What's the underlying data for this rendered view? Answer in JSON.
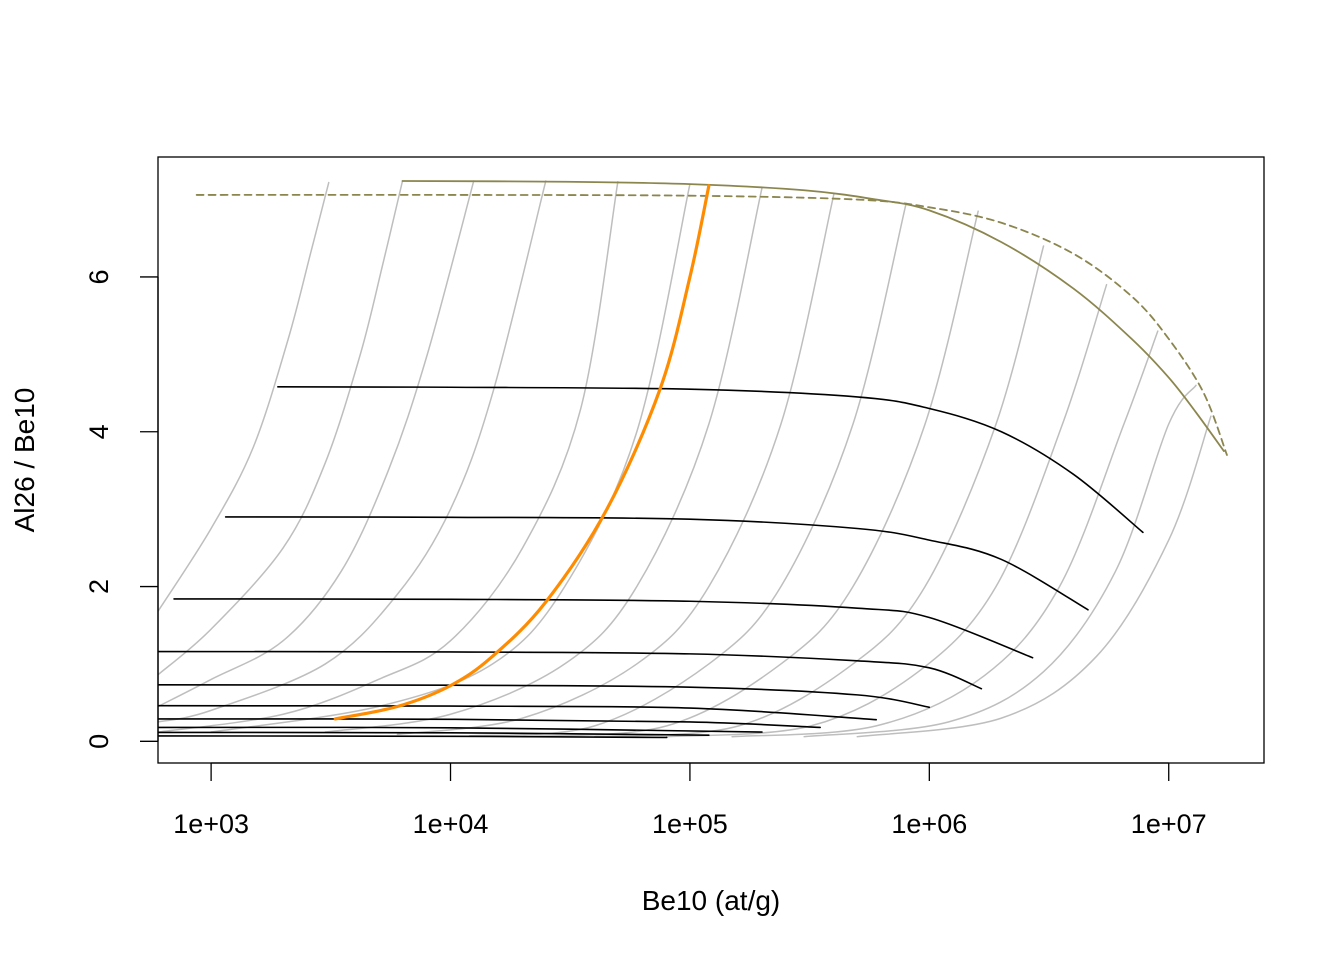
{
  "chart_data": {
    "type": "line",
    "title": "",
    "xlabel": "Be10 (at/g)",
    "ylabel": "Al26 / Be10",
    "x_scale": "log",
    "xlim": [
      600,
      25000000
    ],
    "ylim": [
      -0.28,
      7.55
    ],
    "grid": false,
    "legend": "none",
    "x_ticks": [
      1000,
      10000,
      100000,
      1000000,
      10000000
    ],
    "x_tick_labels": [
      "1e+03",
      "1e+04",
      "1e+05",
      "1e+06",
      "1e+07"
    ],
    "y_ticks": [
      0,
      2,
      4,
      6
    ],
    "y_tick_labels": [
      "0",
      "2",
      "4",
      "6"
    ],
    "colors": {
      "isochron": "#bebebe",
      "burial": "#000000",
      "highlight": "#ff8c00",
      "envelope": "#8b864e"
    },
    "series": [
      {
        "kind": "envelope-solid",
        "points": [
          [
            6300,
            7.24
          ],
          [
            30000,
            7.23
          ],
          [
            100000,
            7.2
          ],
          [
            300000,
            7.12
          ],
          [
            600000,
            7.0
          ],
          [
            1000000,
            6.86
          ],
          [
            2000000,
            6.45
          ],
          [
            4000000,
            5.85
          ],
          [
            7000000,
            5.2
          ],
          [
            10000000,
            4.7
          ],
          [
            13000000,
            4.25
          ],
          [
            17000000,
            3.75
          ]
        ]
      },
      {
        "kind": "envelope-dashed",
        "points": [
          [
            870,
            7.06
          ],
          [
            10000,
            7.06
          ],
          [
            100000,
            7.05
          ],
          [
            500000,
            7.0
          ],
          [
            1000000,
            6.9
          ],
          [
            2000000,
            6.7
          ],
          [
            4000000,
            6.3
          ],
          [
            7000000,
            5.75
          ],
          [
            10000000,
            5.2
          ],
          [
            14000000,
            4.5
          ],
          [
            17500000,
            3.7
          ]
        ]
      },
      {
        "kind": "burial",
        "points": [
          [
            1900,
            4.58
          ],
          [
            10000,
            4.575
          ],
          [
            100000,
            4.55
          ],
          [
            500000,
            4.45
          ],
          [
            1000000,
            4.3
          ],
          [
            2000000,
            4.0
          ],
          [
            4000000,
            3.45
          ],
          [
            7800000,
            2.7
          ]
        ]
      },
      {
        "kind": "burial",
        "points": [
          [
            1150,
            2.9
          ],
          [
            10000,
            2.895
          ],
          [
            100000,
            2.87
          ],
          [
            500000,
            2.75
          ],
          [
            1000000,
            2.6
          ],
          [
            2000000,
            2.35
          ],
          [
            4600000,
            1.7
          ]
        ]
      },
      {
        "kind": "burial",
        "points": [
          [
            700,
            1.84
          ],
          [
            10000,
            1.835
          ],
          [
            100000,
            1.81
          ],
          [
            500000,
            1.72
          ],
          [
            1000000,
            1.6
          ],
          [
            2700000,
            1.08
          ]
        ]
      },
      {
        "kind": "burial",
        "points": [
          [
            600,
            1.16
          ],
          [
            10000,
            1.155
          ],
          [
            100000,
            1.13
          ],
          [
            500000,
            1.04
          ],
          [
            1000000,
            0.95
          ],
          [
            1650000,
            0.68
          ]
        ]
      },
      {
        "kind": "burial",
        "points": [
          [
            600,
            0.73
          ],
          [
            10000,
            0.725
          ],
          [
            100000,
            0.7
          ],
          [
            500000,
            0.6
          ],
          [
            1000000,
            0.44
          ]
        ]
      },
      {
        "kind": "burial",
        "points": [
          [
            600,
            0.46
          ],
          [
            10000,
            0.455
          ],
          [
            100000,
            0.43
          ],
          [
            600000,
            0.28
          ]
        ]
      },
      {
        "kind": "burial",
        "points": [
          [
            600,
            0.29
          ],
          [
            10000,
            0.285
          ],
          [
            100000,
            0.25
          ],
          [
            350000,
            0.18
          ]
        ]
      },
      {
        "kind": "burial",
        "points": [
          [
            600,
            0.18
          ],
          [
            10000,
            0.175
          ],
          [
            200000,
            0.12
          ]
        ]
      },
      {
        "kind": "burial",
        "points": [
          [
            600,
            0.115
          ],
          [
            10000,
            0.11
          ],
          [
            120000,
            0.08
          ]
        ]
      },
      {
        "kind": "burial",
        "points": [
          [
            600,
            0.07
          ],
          [
            10000,
            0.065
          ],
          [
            80000,
            0.05
          ]
        ]
      },
      {
        "kind": "isochron",
        "points": [
          [
            600,
            1.68
          ],
          [
            1000,
            2.75
          ],
          [
            1500,
            3.8
          ],
          [
            2100,
            5.2
          ],
          [
            2600,
            6.3
          ],
          [
            3100,
            7.22
          ]
        ]
      },
      {
        "kind": "isochron",
        "points": [
          [
            600,
            0.86
          ],
          [
            1000,
            1.45
          ],
          [
            2000,
            2.5
          ],
          [
            3000,
            3.6
          ],
          [
            4200,
            5.0
          ],
          [
            5200,
            6.15
          ],
          [
            6300,
            7.24
          ]
        ]
      },
      {
        "kind": "isochron",
        "points": [
          [
            600,
            0.45
          ],
          [
            1000,
            0.8
          ],
          [
            2000,
            1.3
          ],
          [
            3500,
            2.2
          ],
          [
            5500,
            3.5
          ],
          [
            8000,
            5.0
          ],
          [
            12500,
            7.24
          ]
        ]
      },
      {
        "kind": "isochron",
        "points": [
          [
            600,
            0.25
          ],
          [
            1000,
            0.4
          ],
          [
            3000,
            1.0
          ],
          [
            6000,
            1.9
          ],
          [
            10000,
            3.0
          ],
          [
            15000,
            4.5
          ],
          [
            25000,
            7.24
          ]
        ]
      },
      {
        "kind": "isochron",
        "points": [
          [
            600,
            0.12
          ],
          [
            2000,
            0.35
          ],
          [
            5000,
            0.8
          ],
          [
            10000,
            1.3
          ],
          [
            20000,
            2.5
          ],
          [
            35000,
            4.3
          ],
          [
            50000,
            7.23
          ]
        ]
      },
      {
        "kind": "isochron",
        "points": [
          [
            1000,
            0.12
          ],
          [
            5000,
            0.45
          ],
          [
            15000,
            1.0
          ],
          [
            30000,
            2.0
          ],
          [
            60000,
            4.0
          ],
          [
            100000,
            7.2
          ]
        ]
      },
      {
        "kind": "isochron",
        "points": [
          [
            3000,
            0.12
          ],
          [
            10000,
            0.35
          ],
          [
            30000,
            1.0
          ],
          [
            60000,
            2.0
          ],
          [
            120000,
            4.1
          ],
          [
            200000,
            7.15
          ]
        ]
      },
      {
        "kind": "isochron",
        "points": [
          [
            6000,
            0.09
          ],
          [
            20000,
            0.3
          ],
          [
            60000,
            1.0
          ],
          [
            120000,
            2.0
          ],
          [
            240000,
            4.1
          ],
          [
            400000,
            7.08
          ]
        ]
      },
      {
        "kind": "isochron",
        "points": [
          [
            12000,
            0.07
          ],
          [
            40000,
            0.2
          ],
          [
            120000,
            1.0
          ],
          [
            240000,
            2.0
          ],
          [
            480000,
            4.1
          ],
          [
            800000,
            6.95
          ]
        ]
      },
      {
        "kind": "isochron",
        "points": [
          [
            20000,
            0.06
          ],
          [
            80000,
            0.2
          ],
          [
            240000,
            1.0
          ],
          [
            480000,
            2.0
          ],
          [
            960000,
            4.1
          ],
          [
            1600000,
            6.85
          ]
        ]
      },
      {
        "kind": "isochron",
        "points": [
          [
            40000,
            0.06
          ],
          [
            160000,
            0.2
          ],
          [
            480000,
            1.0
          ],
          [
            960000,
            2.0
          ],
          [
            1900000,
            4.1
          ],
          [
            3000000,
            6.4
          ]
        ]
      },
      {
        "kind": "isochron",
        "points": [
          [
            80000,
            0.06
          ],
          [
            320000,
            0.2
          ],
          [
            900000,
            0.9
          ],
          [
            1900000,
            2.0
          ],
          [
            3600000,
            4.1
          ],
          [
            5500000,
            5.9
          ]
        ]
      },
      {
        "kind": "isochron",
        "points": [
          [
            150000,
            0.06
          ],
          [
            600000,
            0.2
          ],
          [
            1700000,
            0.85
          ],
          [
            3500000,
            2.0
          ],
          [
            6500000,
            4.1
          ],
          [
            9000000,
            5.3
          ]
        ]
      },
      {
        "kind": "isochron",
        "points": [
          [
            300000,
            0.06
          ],
          [
            1200000,
            0.25
          ],
          [
            3000000,
            0.9
          ],
          [
            6000000,
            2.2
          ],
          [
            10000000,
            4.1
          ],
          [
            13000000,
            4.6
          ]
        ]
      },
      {
        "kind": "isochron",
        "points": [
          [
            500000,
            0.06
          ],
          [
            2000000,
            0.3
          ],
          [
            5000000,
            1.1
          ],
          [
            10000000,
            2.6
          ],
          [
            15000000,
            4.2
          ]
        ]
      },
      {
        "kind": "highlight",
        "points": [
          [
            3300,
            0.29
          ],
          [
            6000,
            0.45
          ],
          [
            10000,
            0.72
          ],
          [
            15000,
            1.1
          ],
          [
            25000,
            1.8
          ],
          [
            45000,
            3.0
          ],
          [
            75000,
            4.55
          ],
          [
            100000,
            6.0
          ],
          [
            120000,
            7.18
          ]
        ]
      }
    ]
  }
}
